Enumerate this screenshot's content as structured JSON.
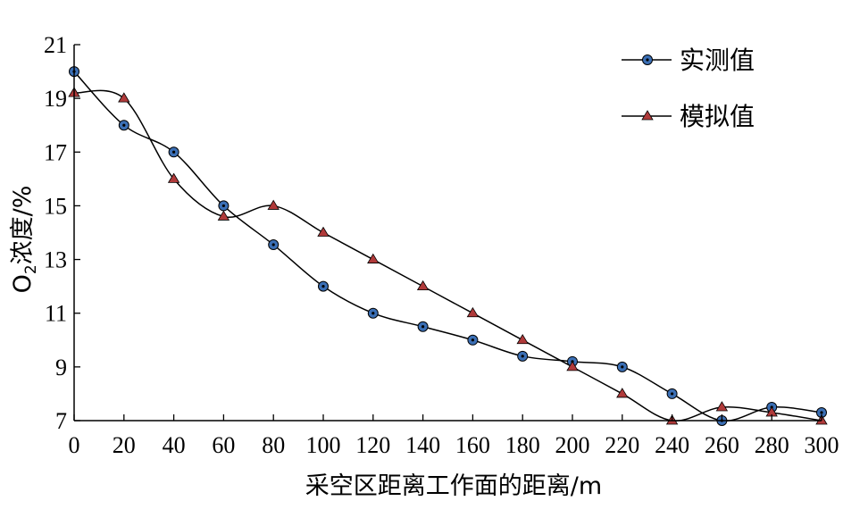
{
  "chart_data": {
    "type": "line",
    "title": "",
    "xlabel": "采空区距离工作面的距离/m",
    "ylabel_main": "O",
    "ylabel_sub": "2",
    "ylabel_rest": "浓度/%",
    "xlim": [
      0,
      300
    ],
    "ylim": [
      7,
      21
    ],
    "xticks": [
      "0",
      "20",
      "40",
      "60",
      "80",
      "100",
      "120",
      "140",
      "160",
      "180",
      "200",
      "220",
      "240",
      "260",
      "280",
      "300"
    ],
    "yticks": [
      "7",
      "9",
      "11",
      "13",
      "15",
      "17",
      "19",
      "21"
    ],
    "grid": false,
    "legend_position": "top-right",
    "x": [
      0,
      20,
      40,
      60,
      80,
      100,
      120,
      140,
      160,
      180,
      200,
      220,
      240,
      260,
      280,
      300
    ],
    "series": [
      {
        "name": "实测值",
        "marker": "circle",
        "marker_color": "#3b6fb5",
        "values": [
          20.0,
          18.0,
          17.0,
          15.0,
          13.55,
          12.0,
          11.0,
          10.5,
          10.0,
          9.4,
          9.2,
          9.0,
          8.0,
          7.0,
          7.5,
          7.3
        ]
      },
      {
        "name": "模拟值",
        "marker": "triangle",
        "marker_color": "#b03a3a",
        "values": [
          19.2,
          19.0,
          16.0,
          14.6,
          15.0,
          14.0,
          13.0,
          12.0,
          11.0,
          10.0,
          9.0,
          8.0,
          7.0,
          7.5,
          7.3,
          7.0
        ]
      }
    ]
  }
}
